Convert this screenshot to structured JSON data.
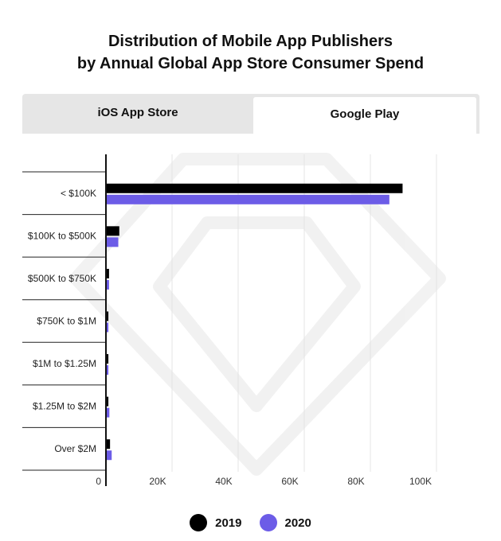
{
  "title_line1": "Distribution of Mobile App Publishers",
  "title_line2": "by Annual Global App Store Consumer Spend",
  "tabs": [
    {
      "label": "iOS App Store",
      "active": false
    },
    {
      "label": "Google Play",
      "active": true
    }
  ],
  "colors": {
    "series_2019": "#000000",
    "series_2020": "#6c5ce7",
    "tab_inactive_bg": "#e6e6e6",
    "gridline": "#e4e4e4"
  },
  "chart_data": {
    "type": "bar",
    "orientation": "horizontal",
    "categories": [
      "< $100K",
      "$100K to $500K",
      "$500K to $750K",
      "$750K to $1M",
      "$1M to $1.25M",
      "$1.25M to $2M",
      "Over $2M"
    ],
    "series": [
      {
        "name": "2019",
        "values": [
          89500,
          3800,
          700,
          500,
          500,
          500,
          1000
        ]
      },
      {
        "name": "2020",
        "values": [
          85500,
          3500,
          700,
          500,
          500,
          800,
          1500
        ]
      }
    ],
    "xticks": [
      "0",
      "20K",
      "40K",
      "60K",
      "80K",
      "100K"
    ],
    "xtick_values": [
      0,
      20000,
      40000,
      60000,
      80000,
      100000
    ],
    "xlim": [
      0,
      100000
    ],
    "title": "",
    "xlabel": "",
    "ylabel": "",
    "grid": true,
    "legend_position": "bottom"
  }
}
